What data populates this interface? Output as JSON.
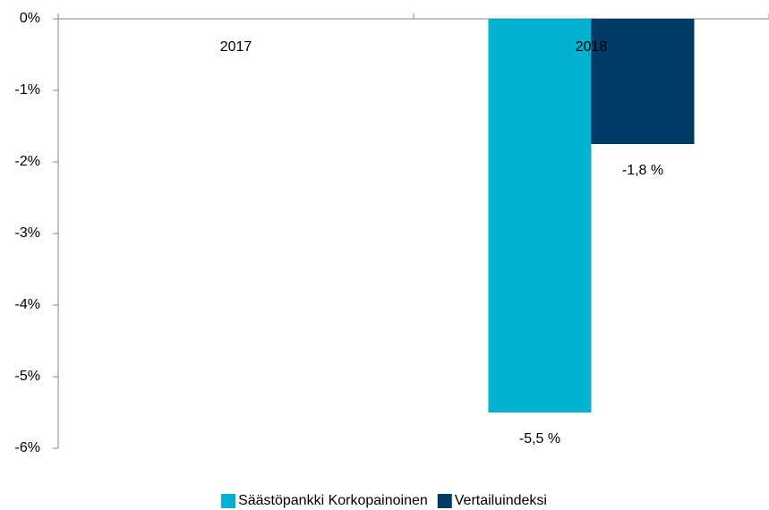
{
  "chart_data": {
    "type": "bar",
    "categories": [
      "2017",
      "2018"
    ],
    "series": [
      {
        "name": "Säästöpankki Korkopainoinen",
        "color": "#00b2d0",
        "values": [
          null,
          -5.5
        ],
        "value_labels": [
          null,
          "-5,5 %"
        ]
      },
      {
        "name": "Vertailuindeksi",
        "color": "#003a66",
        "values": [
          null,
          -1.75
        ],
        "value_labels": [
          null,
          "-1,8 %"
        ]
      }
    ],
    "ylim": [
      -6,
      0
    ],
    "yticks": [
      {
        "value": 0,
        "label": "0%"
      },
      {
        "value": -1,
        "label": "-1%"
      },
      {
        "value": -2,
        "label": "-2%"
      },
      {
        "value": -3,
        "label": "-3%"
      },
      {
        "value": -4,
        "label": "-4%"
      },
      {
        "value": -5,
        "label": "-5%"
      },
      {
        "value": -6,
        "label": "-6%"
      }
    ],
    "legend": "bottom"
  }
}
